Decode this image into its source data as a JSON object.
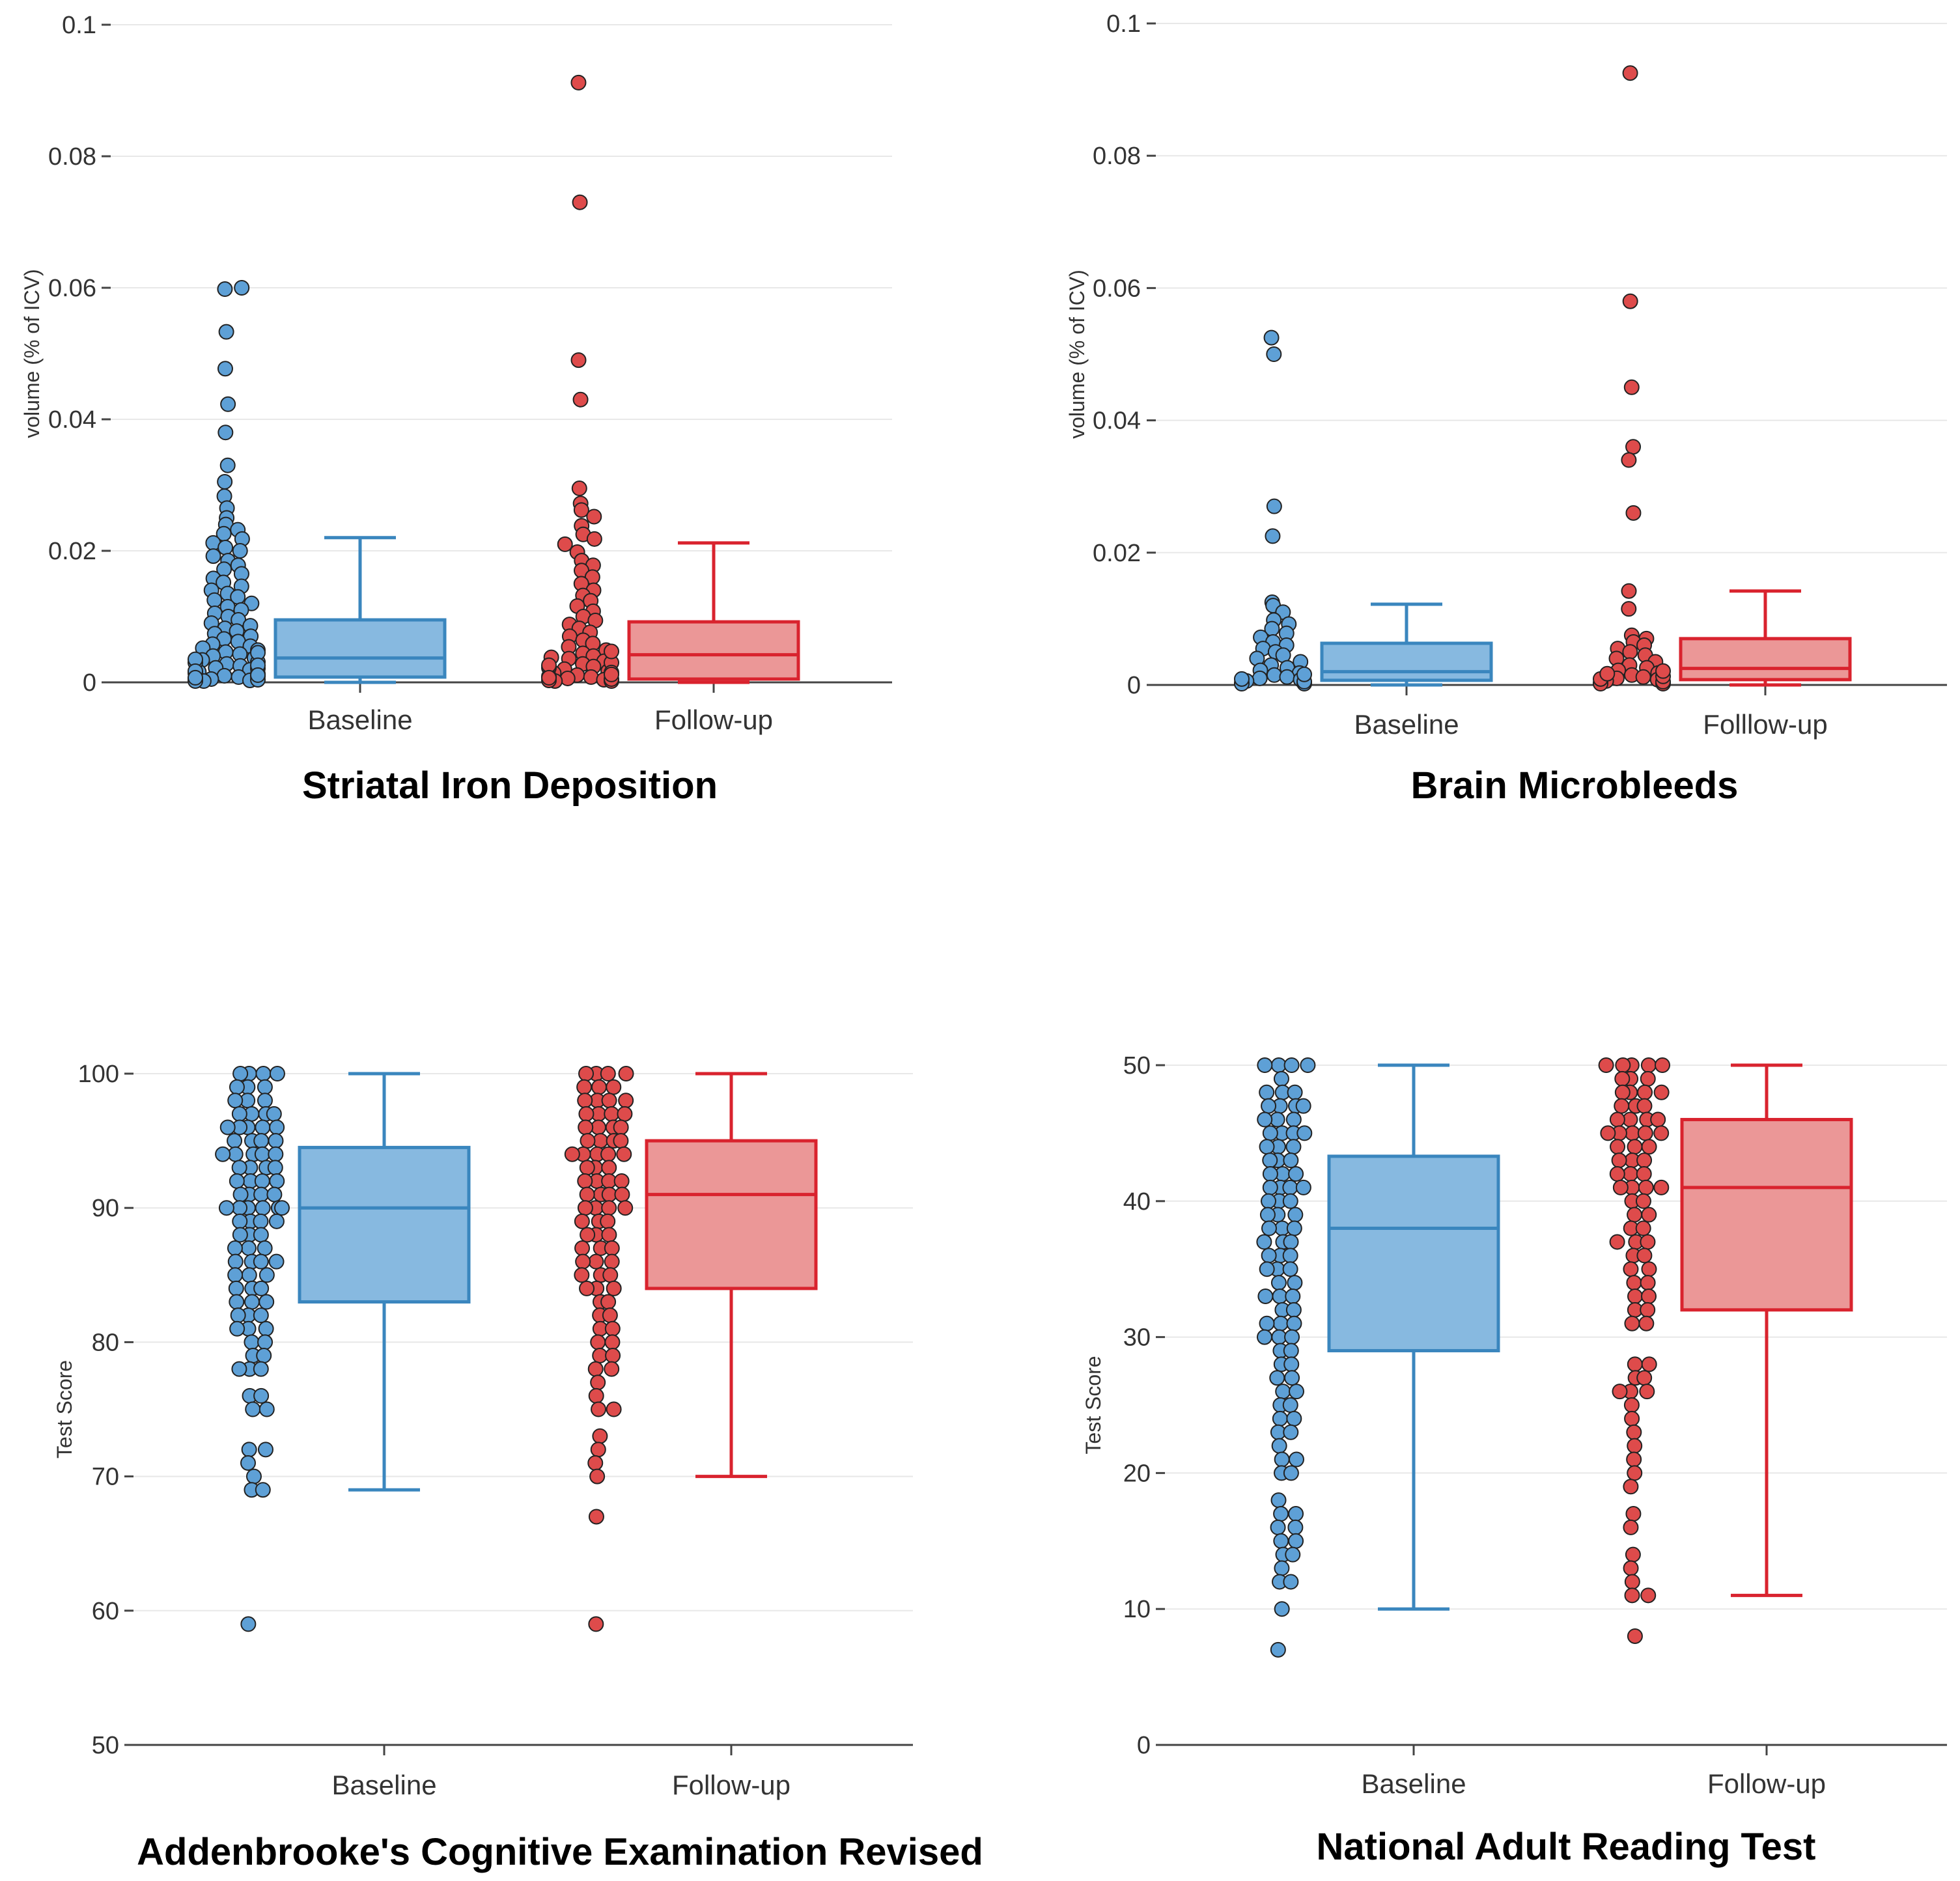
{
  "figure": {
    "type": "multi-panel box plot with jittered points"
  },
  "colors": {
    "baseline_fill": "#87b9e0",
    "baseline_stroke": "#3a86be",
    "baseline_dot": "#5ea0d6",
    "followup_fill": "#eb9797",
    "followup_stroke": "#d9232e",
    "followup_dot": "#de4b4b"
  },
  "chart_data": [
    {
      "type": "box",
      "title": "Striatal Iron Deposition",
      "ylabel": "volume (% of ICV)",
      "ylim": [
        0,
        0.1
      ],
      "yticks": [
        0,
        0.02,
        0.04,
        0.06,
        0.08,
        0.1
      ],
      "ytick_labels": [
        "0",
        "0.02",
        "0.04",
        "0.06",
        "0.08",
        "0.1"
      ],
      "categories": [
        "Baseline",
        "Follow-up"
      ],
      "series": [
        {
          "name": "Baseline",
          "box": {
            "lower_whisker": 0,
            "q1": 0.0008,
            "median": 0.0037,
            "q3": 0.0095,
            "upper_whisker": 0.022
          },
          "points": [
            0.0598,
            0.06,
            0.0533,
            0.0477,
            0.0423,
            0.038,
            0.033,
            0.0305,
            0.0283,
            0.0265,
            0.025,
            0.024,
            0.0232,
            0.0226,
            0.0218,
            0.0212,
            0.0205,
            0.02,
            0.0192,
            0.0185,
            0.0178,
            0.0172,
            0.0165,
            0.0158,
            0.0152,
            0.0146,
            0.014,
            0.0135,
            0.013,
            0.0125,
            0.012,
            0.0115,
            0.011,
            0.0105,
            0.01,
            0.0095,
            0.009,
            0.0086,
            0.0082,
            0.0078,
            0.0074,
            0.007,
            0.0066,
            0.0062,
            0.0058,
            0.0055,
            0.0052,
            0.0049,
            0.0046,
            0.0043,
            0.004,
            0.0037,
            0.0034,
            0.0031,
            0.0028,
            0.0025,
            0.0022,
            0.0019,
            0.0016,
            0.0013,
            0.001,
            0.0008,
            0.0005,
            0.0003,
            0.0001,
            0.003,
            0.0021,
            0.0014,
            0.0009,
            0.0006,
            0.0004,
            0.0002,
            0.0035,
            0.0045,
            0.0026,
            0.0017,
            0.0011,
            0.0007
          ]
        },
        {
          "name": "Follow-up",
          "box": {
            "lower_whisker": 0,
            "q1": 0.0005,
            "median": 0.0042,
            "q3": 0.0092,
            "upper_whisker": 0.0212
          },
          "points": [
            0.0912,
            0.073,
            0.049,
            0.043,
            0.0295,
            0.0272,
            0.0262,
            0.0252,
            0.0238,
            0.0225,
            0.0218,
            0.021,
            0.0198,
            0.0185,
            0.0178,
            0.017,
            0.016,
            0.015,
            0.014,
            0.0132,
            0.0124,
            0.0116,
            0.0108,
            0.01,
            0.0094,
            0.0088,
            0.0082,
            0.0076,
            0.007,
            0.0064,
            0.0059,
            0.0054,
            0.0049,
            0.0044,
            0.004,
            0.0036,
            0.0032,
            0.0028,
            0.0024,
            0.002,
            0.0017,
            0.0014,
            0.0011,
            0.0008,
            0.0006,
            0.0004,
            0.0002,
            0.0001,
            0.003,
            0.0022,
            0.0015,
            0.0009,
            0.0005,
            0.0003,
            0.0038,
            0.0047,
            0.0026,
            0.0012,
            0.0007
          ]
        }
      ]
    },
    {
      "type": "box",
      "title": "Brain Microbleeds",
      "ylabel": "volume (% of ICV)",
      "ylim": [
        0,
        0.1
      ],
      "yticks": [
        0,
        0.02,
        0.04,
        0.06,
        0.08,
        0.1
      ],
      "ytick_labels": [
        "0",
        "0.02",
        "0.04",
        "0.06",
        "0.08",
        "0.1"
      ],
      "categories": [
        "Baseline",
        "Folllow-up"
      ],
      "series": [
        {
          "name": "Baseline",
          "box": {
            "lower_whisker": 0,
            "q1": 0.0007,
            "median": 0.002,
            "q3": 0.0063,
            "upper_whisker": 0.0122
          },
          "points": [
            0.0525,
            0.05,
            0.027,
            0.0225,
            0.0125,
            0.012,
            0.011,
            0.0098,
            0.0092,
            0.0085,
            0.0078,
            0.0072,
            0.0065,
            0.006,
            0.0055,
            0.005,
            0.0045,
            0.004,
            0.0035,
            0.003,
            0.0026,
            0.0022,
            0.0018,
            0.0015,
            0.0012,
            0.001,
            0.0008,
            0.0006,
            0.0004,
            0.0003,
            0.0002,
            0.0001,
            0.0005,
            0.0009,
            0.0016
          ]
        },
        {
          "name": "Folllow-up",
          "box": {
            "lower_whisker": 0,
            "q1": 0.0008,
            "median": 0.0025,
            "q3": 0.007,
            "upper_whisker": 0.0142
          },
          "points": [
            0.0925,
            0.058,
            0.045,
            0.036,
            0.034,
            0.026,
            0.0142,
            0.0115,
            0.0075,
            0.007,
            0.0065,
            0.006,
            0.0055,
            0.005,
            0.0045,
            0.004,
            0.0035,
            0.003,
            0.0026,
            0.0022,
            0.0018,
            0.0015,
            0.0012,
            0.001,
            0.0008,
            0.0006,
            0.0004,
            0.0003,
            0.0002,
            0.0001,
            0.0005,
            0.0009,
            0.0013,
            0.0017,
            0.0021
          ]
        }
      ]
    },
    {
      "type": "box",
      "title": "Addenbrooke's Cognitive Examination Revised",
      "ylabel": "Test Score",
      "ylim": [
        50,
        100
      ],
      "yticks": [
        50,
        60,
        70,
        80,
        90,
        100
      ],
      "ytick_labels": [
        "50",
        "60",
        "70",
        "80",
        "90",
        "100"
      ],
      "categories": [
        "Baseline",
        "Follow-up"
      ],
      "series": [
        {
          "name": "Baseline",
          "box": {
            "lower_whisker": 69,
            "q1": 83,
            "median": 90,
            "q3": 94.5,
            "upper_whisker": 100
          },
          "points": [
            100,
            100,
            100,
            100,
            99,
            99,
            99,
            98,
            98,
            98,
            97,
            97,
            97,
            97,
            96,
            96,
            96,
            96,
            96,
            95,
            95,
            95,
            95,
            94,
            94,
            94,
            94,
            94,
            93,
            93,
            93,
            93,
            92,
            92,
            92,
            92,
            91,
            91,
            91,
            91,
            90,
            90,
            90,
            90,
            90,
            90,
            89,
            89,
            89,
            89,
            88,
            88,
            88,
            87,
            87,
            87,
            86,
            86,
            86,
            86,
            85,
            85,
            85,
            84,
            84,
            84,
            83,
            83,
            83,
            82,
            82,
            82,
            81,
            81,
            81,
            80,
            80,
            79,
            79,
            78,
            78,
            78,
            76,
            76,
            75,
            75,
            72,
            72,
            71,
            70,
            69,
            69,
            59
          ]
        },
        {
          "name": "Follow-up",
          "box": {
            "lower_whisker": 70,
            "q1": 84,
            "median": 91,
            "q3": 95,
            "upper_whisker": 100
          },
          "points": [
            100,
            100,
            100,
            100,
            99,
            99,
            99,
            98,
            98,
            98,
            98,
            97,
            97,
            97,
            97,
            96,
            96,
            96,
            96,
            95,
            95,
            95,
            95,
            94,
            94,
            94,
            94,
            94,
            93,
            93,
            93,
            92,
            92,
            92,
            92,
            91,
            91,
            91,
            91,
            90,
            90,
            90,
            90,
            89,
            89,
            89,
            88,
            88,
            88,
            87,
            87,
            87,
            86,
            86,
            86,
            85,
            85,
            85,
            84,
            84,
            84,
            83,
            83,
            82,
            82,
            81,
            81,
            80,
            80,
            79,
            79,
            78,
            78,
            77,
            76,
            75,
            75,
            73,
            72,
            71,
            70,
            67,
            59
          ]
        }
      ]
    },
    {
      "type": "box",
      "title": "National Adult Reading Test",
      "ylabel": "Test Score",
      "ylim": [
        0,
        50
      ],
      "yticks": [
        0,
        10,
        20,
        30,
        40,
        50
      ],
      "ytick_labels": [
        "0",
        "10",
        "20",
        "30",
        "40",
        "50"
      ],
      "categories": [
        "Baseline",
        "Follow-up"
      ],
      "series": [
        {
          "name": "Baseline",
          "box": {
            "lower_whisker": 10,
            "q1": 29,
            "median": 38,
            "q3": 43.3,
            "upper_whisker": 50
          },
          "points": [
            50,
            50,
            50,
            50,
            49,
            48,
            48,
            48,
            47,
            47,
            47,
            47,
            46,
            46,
            46,
            45,
            45,
            45,
            45,
            44,
            44,
            44,
            43,
            43,
            43,
            42,
            42,
            42,
            41,
            41,
            41,
            41,
            40,
            40,
            40,
            39,
            39,
            39,
            38,
            38,
            38,
            37,
            37,
            37,
            36,
            36,
            36,
            35,
            35,
            35,
            34,
            34,
            33,
            33,
            33,
            32,
            32,
            31,
            31,
            31,
            30,
            30,
            30,
            29,
            29,
            28,
            28,
            27,
            27,
            26,
            26,
            25,
            25,
            24,
            24,
            23,
            23,
            22,
            21,
            21,
            20,
            20,
            18,
            17,
            17,
            16,
            16,
            15,
            15,
            14,
            14,
            13,
            12,
            12,
            10,
            7
          ]
        },
        {
          "name": "Follow-up",
          "box": {
            "lower_whisker": 11,
            "q1": 32,
            "median": 41,
            "q3": 46,
            "upper_whisker": 50
          },
          "points": [
            50,
            50,
            50,
            50,
            50,
            49,
            49,
            49,
            48,
            48,
            48,
            48,
            47,
            47,
            47,
            46,
            46,
            46,
            46,
            45,
            45,
            45,
            45,
            45,
            44,
            44,
            44,
            43,
            43,
            43,
            42,
            42,
            42,
            41,
            41,
            41,
            41,
            40,
            40,
            39,
            39,
            38,
            38,
            37,
            37,
            37,
            36,
            36,
            35,
            35,
            34,
            34,
            33,
            33,
            32,
            32,
            31,
            31,
            28,
            28,
            27,
            27,
            26,
            26,
            26,
            25,
            24,
            23,
            22,
            21,
            20,
            19,
            17,
            16,
            14,
            13,
            12,
            11,
            11,
            8
          ]
        }
      ]
    }
  ]
}
